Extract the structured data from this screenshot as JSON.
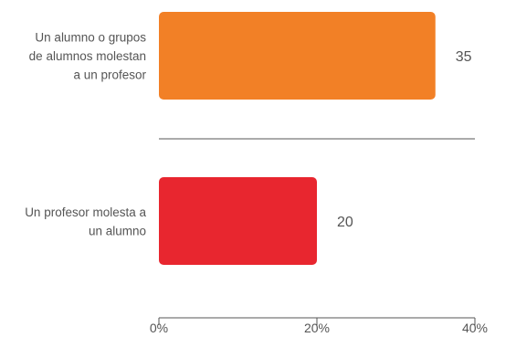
{
  "chart_data": {
    "type": "bar",
    "orientation": "horizontal",
    "categories": [
      "Un alumno o grupos de alumnos molestan a un profesor",
      "Un profesor molesta a un alumno"
    ],
    "category_label_lines": [
      [
        "Un alumno o grupos",
        "de alumnos molestan",
        "a un profesor"
      ],
      [
        "Un profesor molesta a",
        "un alumno"
      ]
    ],
    "values": [
      35,
      20
    ],
    "data_labels": [
      "35",
      "20"
    ],
    "colors": [
      "#f28026",
      "#e8262f"
    ],
    "xlim": [
      0,
      40
    ],
    "x_ticks": [
      0,
      20,
      40
    ],
    "x_tick_labels": [
      "0%",
      "20%",
      "40%"
    ],
    "grid": false,
    "title": "",
    "xlabel": "",
    "ylabel": ""
  }
}
